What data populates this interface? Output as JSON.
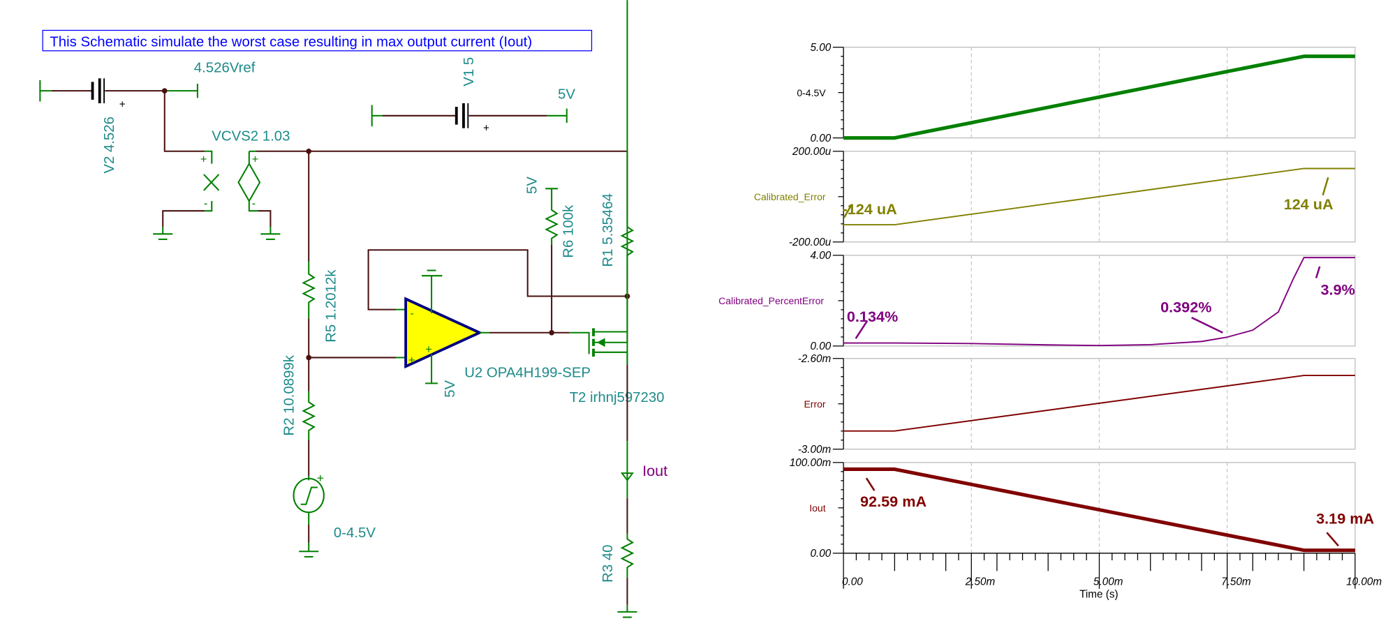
{
  "schematic": {
    "title": "This Schematic simulate the worst case resulting in max output current (Iout)",
    "v2_label": "V2 4.526",
    "vref_label": "4.526Vref",
    "v1_label": "V1 5",
    "v1_net": "5V",
    "vcvs_label": "VCVS2 1.03",
    "r6_net": "5V",
    "r6_label": "R6 100k",
    "r1_label": "R1 5.35464",
    "r5_label": "R5 1.2012k",
    "r2_label": "R2 10.0899k",
    "opamp_label": "U2 OPA4H199-SEP",
    "opamp_supply": "5V",
    "fet_label": "T2 irhnj597230",
    "iout_label": "Iout",
    "r3_label": "R3 40",
    "source_label": "0-4.5V",
    "plus": "+",
    "minus": "-"
  },
  "chart_data": {
    "type": "line",
    "xlabel": "Time (s)",
    "xlim_ms": [
      0,
      10
    ],
    "xticks": [
      "0.00",
      "2.50m",
      "5.00m",
      "7.50m",
      "10.00m"
    ],
    "grid": true,
    "panels": [
      {
        "name": "0-4.5V",
        "color": "#008000",
        "width": 4,
        "ylim": [
          0,
          5
        ],
        "yticks": [
          "5.00",
          "0.00"
        ],
        "t": [
          0,
          1,
          2.5,
          5,
          7.5,
          9,
          10
        ],
        "y": [
          0,
          0,
          0.84,
          2.25,
          3.66,
          4.5,
          4.5
        ],
        "annotations": []
      },
      {
        "name": "Calibrated_Error",
        "color": "#808000",
        "width": 1.5,
        "ylim": [
          -200,
          200
        ],
        "unit": "u",
        "yticks": [
          "200.00u",
          "-200.00u"
        ],
        "t": [
          0,
          1,
          2.5,
          5,
          7.5,
          9,
          10
        ],
        "y": [
          -124,
          -124,
          -77.5,
          0,
          77.5,
          124,
          124
        ],
        "annotations": [
          {
            "text": "-124 uA",
            "t": 0.5,
            "y": -124
          },
          {
            "text": "124 uA",
            "t": 9.3,
            "y": 124
          }
        ]
      },
      {
        "name": "Calibrated_PercentError",
        "color": "#800080",
        "width": 1.5,
        "ylim": [
          0,
          4
        ],
        "yticks": [
          "4.00",
          "0.00"
        ],
        "t": [
          0,
          1,
          2.5,
          4,
          5,
          6,
          7,
          7.5,
          8,
          8.5,
          8.8,
          9,
          10
        ],
        "y": [
          0.134,
          0.134,
          0.11,
          0.05,
          0.02,
          0.06,
          0.2,
          0.392,
          0.7,
          1.5,
          3.0,
          3.9,
          3.9
        ],
        "annotations": [
          {
            "text": "0.134%",
            "t": 0.5,
            "y": 0.134
          },
          {
            "text": "0.392%",
            "t": 7.5,
            "y": 0.392
          },
          {
            "text": "3.9%",
            "t": 9.5,
            "y": 3.9
          }
        ]
      },
      {
        "name": "Error",
        "color": "#800000",
        "width": 1.5,
        "ylim": [
          -3.0,
          -2.6
        ],
        "unit": "m",
        "yticks": [
          "-2.60m",
          "-3.00m"
        ],
        "t": [
          0,
          1,
          9,
          10
        ],
        "y": [
          -2.92,
          -2.92,
          -2.675,
          -2.675
        ],
        "annotations": []
      },
      {
        "name": "Iout",
        "color": "#800000",
        "width": 4,
        "ylim": [
          0,
          100
        ],
        "unit": "m",
        "yticks": [
          "100.00m",
          "0.00"
        ],
        "t": [
          0,
          1,
          9,
          10
        ],
        "y": [
          92.59,
          92.59,
          3.19,
          3.19
        ],
        "annotations": [
          {
            "text": "92.59 mA",
            "t": 0.5,
            "y": 92.59
          },
          {
            "text": "3.19 mA",
            "t": 9.5,
            "y": 3.19
          }
        ]
      }
    ]
  }
}
